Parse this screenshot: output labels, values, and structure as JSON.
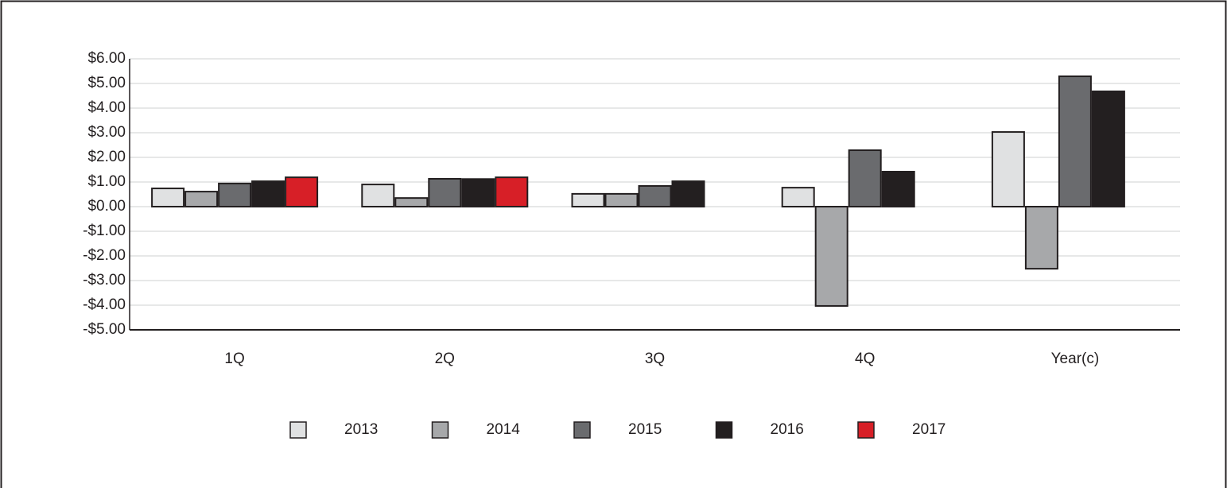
{
  "chart_data": {
    "type": "bar",
    "categories": [
      "1Q",
      "2Q",
      "3Q",
      "4Q",
      "Year(c)"
    ],
    "series": [
      {
        "name": "2013",
        "color": "#e0e1e2",
        "values": [
          0.74,
          0.9,
          0.52,
          0.77,
          3.03
        ]
      },
      {
        "name": "2014",
        "color": "#a7a8aa",
        "values": [
          0.61,
          0.35,
          0.52,
          -4.03,
          -2.52
        ]
      },
      {
        "name": "2015",
        "color": "#6a6b6e",
        "values": [
          0.94,
          1.13,
          0.84,
          2.29,
          5.29
        ]
      },
      {
        "name": "2016",
        "color": "#231f20",
        "values": [
          1.03,
          1.12,
          1.03,
          1.42,
          4.68
        ]
      },
      {
        "name": "2017",
        "color": "#d71f27",
        "values": [
          1.19,
          1.19,
          null,
          null,
          null
        ]
      }
    ],
    "ylim": [
      -5,
      6
    ],
    "yticks": [
      {
        "value": -5,
        "label": "-$5.00"
      },
      {
        "value": -4,
        "label": "-$4.00"
      },
      {
        "value": -3,
        "label": "-$3.00"
      },
      {
        "value": -2,
        "label": "-$2.00"
      },
      {
        "value": -1,
        "label": "-$1.00"
      },
      {
        "value": 0,
        "label": "$0.00"
      },
      {
        "value": 1,
        "label": "$1.00"
      },
      {
        "value": 2,
        "label": "$2.00"
      },
      {
        "value": 3,
        "label": "$3.00"
      },
      {
        "value": 4,
        "label": "$4.00"
      },
      {
        "value": 5,
        "label": "$5.00"
      },
      {
        "value": 6,
        "label": "$6.00"
      }
    ],
    "grid": true,
    "legend": "bottom"
  }
}
